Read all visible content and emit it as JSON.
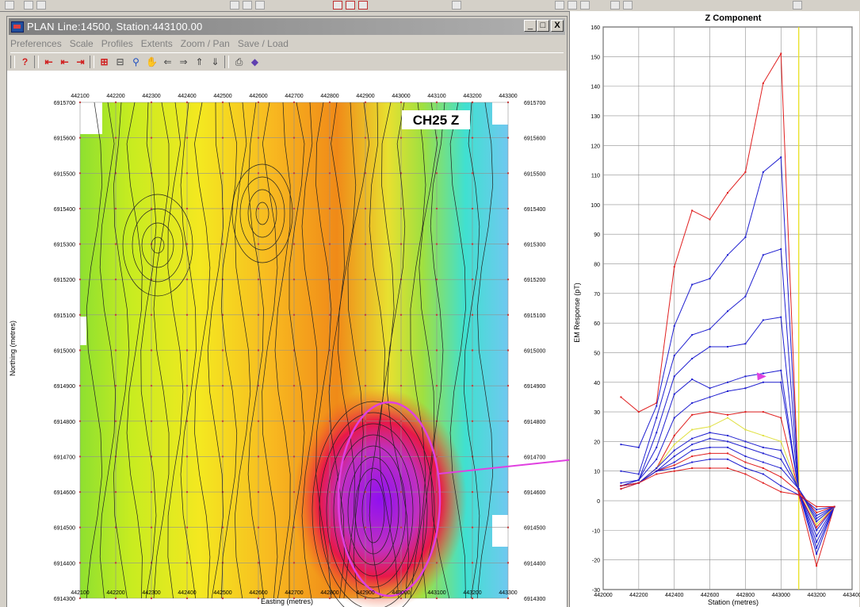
{
  "window": {
    "title": "PLAN  Line:14500, Station:443100.00",
    "minimize": "_",
    "maximize": "□",
    "close": "X"
  },
  "menu": [
    "Preferences",
    "Scale",
    "Profiles",
    "Extents",
    "Zoom / Pan",
    "Save / Load"
  ],
  "map": {
    "easting_labels": [
      "442100",
      "442200",
      "442300",
      "442400",
      "442500",
      "442600",
      "442700",
      "442800",
      "442900",
      "443000",
      "443100",
      "443200",
      "443300"
    ],
    "northing_labels": [
      "6915700",
      "6915600",
      "6915500",
      "6915400",
      "6915300",
      "6915200",
      "6915100",
      "6915000",
      "6914900",
      "6914800",
      "6914700",
      "6914600",
      "6914500",
      "6914400",
      "6914300"
    ],
    "xlabel": "Easting (metres)",
    "ylabel": "Northing (metres)",
    "channel_label": "CH25 Z"
  },
  "chart_data": {
    "type": "line",
    "title": "Z Component",
    "xlabel": "Station (metres)",
    "ylabel": "EM Response (pT)",
    "xlim": [
      442000,
      443400
    ],
    "ylim": [
      -30,
      160
    ],
    "x_ticks": [
      442000,
      442200,
      442400,
      442600,
      442800,
      443000,
      443200,
      443400
    ],
    "y_ticks": [
      -30,
      -20,
      -10,
      0,
      10,
      20,
      30,
      40,
      50,
      60,
      70,
      80,
      90,
      100,
      110,
      120,
      130,
      140,
      150,
      160
    ],
    "marker_x": 443100,
    "x": [
      442100,
      442200,
      442300,
      442400,
      442500,
      442600,
      442700,
      442800,
      442900,
      443000,
      443100,
      443200,
      443300
    ],
    "series": [
      {
        "color": "#e02020",
        "values": [
          35,
          30,
          33,
          79,
          98,
          95,
          104,
          111,
          141,
          151,
          2,
          -22,
          -2
        ]
      },
      {
        "color": "#2020d0",
        "values": [
          19,
          18,
          32,
          59,
          73,
          75,
          83,
          89,
          111,
          116,
          3,
          -18,
          -2
        ]
      },
      {
        "color": "#2020d0",
        "values": [
          10,
          9,
          28,
          49,
          56,
          58,
          64,
          69,
          83,
          85,
          3,
          -16,
          -2
        ]
      },
      {
        "color": "#2020d0",
        "values": [
          6,
          7,
          23,
          42,
          48,
          52,
          52,
          53,
          61,
          62,
          3,
          -14,
          -2
        ]
      },
      {
        "color": "#2020d0",
        "values": [
          5,
          7,
          18,
          36,
          41,
          38,
          40,
          42,
          43,
          44,
          3,
          -12,
          -2
        ]
      },
      {
        "color": "#2020d0",
        "values": [
          5,
          7,
          14,
          28,
          33,
          35,
          37,
          38,
          40,
          40,
          3,
          -10,
          -2
        ]
      },
      {
        "color": "#e02020",
        "values": [
          5,
          6,
          11,
          22,
          29,
          30,
          29,
          30,
          30,
          28,
          3,
          -9,
          -2
        ]
      },
      {
        "color": "#e0e040",
        "values": [
          5,
          6,
          11,
          19,
          24,
          25,
          28,
          24,
          22,
          20,
          4,
          -8,
          -2
        ]
      },
      {
        "color": "#2020d0",
        "values": [
          5,
          6,
          11,
          17,
          21,
          23,
          22,
          20,
          18,
          17,
          4,
          -7,
          -2
        ]
      },
      {
        "color": "#2020d0",
        "values": [
          5,
          6,
          10,
          15,
          19,
          21,
          20,
          18,
          16,
          14,
          4,
          -6,
          -2
        ]
      },
      {
        "color": "#2020d0",
        "values": [
          5,
          6,
          10,
          13,
          17,
          18,
          18,
          15,
          13,
          11,
          4,
          -5,
          -2
        ]
      },
      {
        "color": "#e02020",
        "values": [
          5,
          6,
          10,
          12,
          15,
          16,
          16,
          13,
          11,
          8,
          3,
          -4,
          -2
        ]
      },
      {
        "color": "#2020d0",
        "values": [
          4,
          6,
          10,
          11,
          13,
          14,
          14,
          11,
          9,
          5,
          2,
          -3,
          -2
        ]
      },
      {
        "color": "#e02020",
        "values": [
          4,
          6,
          9,
          10,
          11,
          11,
          11,
          9,
          6,
          3,
          2,
          -2,
          -2
        ]
      }
    ]
  }
}
